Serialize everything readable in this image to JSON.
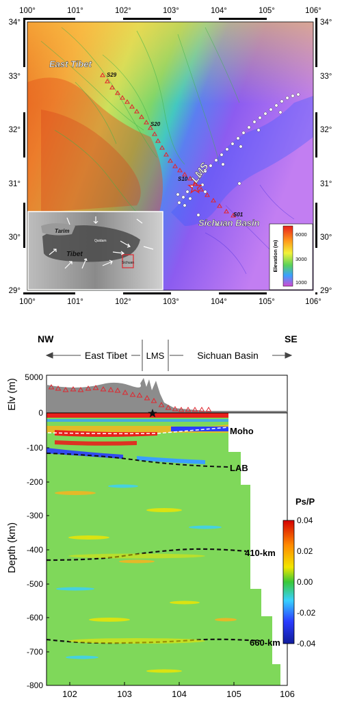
{
  "map": {
    "lon_ticks": [
      "100°",
      "101°",
      "102°",
      "103°",
      "104°",
      "105°",
      "106°"
    ],
    "lat_ticks": [
      "34°",
      "33°",
      "32°",
      "31°",
      "30°",
      "29°"
    ],
    "region_labels": {
      "east_tibet": "East Tibet",
      "lms": "LMS",
      "sichuan_basin": "Sichuan Basin"
    },
    "station_labels": [
      "S29",
      "S20",
      "S10",
      "S01"
    ],
    "inset": {
      "tarim": "Tarim",
      "tibet": "Tibet",
      "qaidam": "Qaidam",
      "sichuan": "Sichuan"
    },
    "elevation_legend": {
      "title": "Elevation (m)",
      "ticks": [
        "6000",
        "3000",
        "1000"
      ]
    }
  },
  "section": {
    "nw": "NW",
    "se": "SE",
    "segments": [
      "East Tibet",
      "LMS",
      "Sichuan Basin"
    ],
    "elv_axis_label": "Elv (m)",
    "elv_ticks": [
      "5000",
      "0"
    ],
    "depth_axis_label": "Depth (km)",
    "depth_ticks": [
      "-100",
      "-200",
      "-300",
      "-400",
      "-500",
      "-600",
      "-700",
      "-800"
    ],
    "x_ticks": [
      "102",
      "103",
      "104",
      "105",
      "106"
    ],
    "interfaces": {
      "moho": "Moho",
      "lab": "LAB",
      "d410": "410-km",
      "d660": "660-km"
    },
    "colorbar": {
      "title": "Ps/P",
      "ticks": [
        "0.04",
        "0.02",
        "0.00",
        "-0.02",
        "-0.04"
      ],
      "colors": [
        "#d40000",
        "#ff8a00",
        "#f2e600",
        "#38c838",
        "#38d0ff",
        "#2a3cff",
        "#101c9a"
      ]
    }
  }
}
